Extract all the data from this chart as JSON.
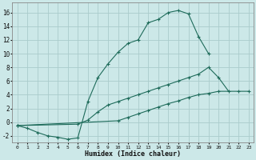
{
  "xlabel": "Humidex (Indice chaleur)",
  "background_color": "#cce8e8",
  "grid_color": "#aacccc",
  "line_color": "#1e6b5a",
  "xlim": [
    -0.5,
    23.5
  ],
  "ylim": [
    -3.0,
    17.5
  ],
  "xtick_vals": [
    0,
    1,
    2,
    3,
    4,
    5,
    6,
    7,
    8,
    9,
    10,
    11,
    12,
    13,
    14,
    15,
    16,
    17,
    18,
    19,
    20,
    21,
    22,
    23
  ],
  "ytick_vals": [
    -2,
    0,
    2,
    4,
    6,
    8,
    10,
    12,
    14,
    16
  ],
  "curve1_x": [
    0,
    1,
    2,
    3,
    4,
    5,
    6,
    7,
    8,
    9,
    10,
    11,
    12,
    13,
    14,
    15,
    16,
    17,
    18,
    19
  ],
  "curve1_y": [
    -0.5,
    -0.9,
    -1.5,
    -2.0,
    -2.2,
    -2.5,
    -2.3,
    3.0,
    6.5,
    8.5,
    10.2,
    11.5,
    12.0,
    14.5,
    15.0,
    16.0,
    16.3,
    15.8,
    12.5,
    10.0
  ],
  "curve2_x": [
    0,
    6,
    7,
    8,
    9,
    10,
    11,
    12,
    13,
    14,
    15,
    16,
    17,
    18,
    19,
    20,
    21
  ],
  "curve2_y": [
    -0.5,
    -0.3,
    0.3,
    1.5,
    2.5,
    3.0,
    3.5,
    4.0,
    4.5,
    5.0,
    5.5,
    6.0,
    6.5,
    7.0,
    8.0,
    6.5,
    4.5
  ],
  "curve3_x": [
    0,
    10,
    11,
    12,
    13,
    14,
    15,
    16,
    17,
    18,
    19,
    20,
    22,
    23
  ],
  "curve3_y": [
    -0.5,
    0.2,
    0.7,
    1.2,
    1.7,
    2.2,
    2.7,
    3.1,
    3.6,
    4.0,
    4.2,
    4.5,
    4.5,
    4.5
  ]
}
